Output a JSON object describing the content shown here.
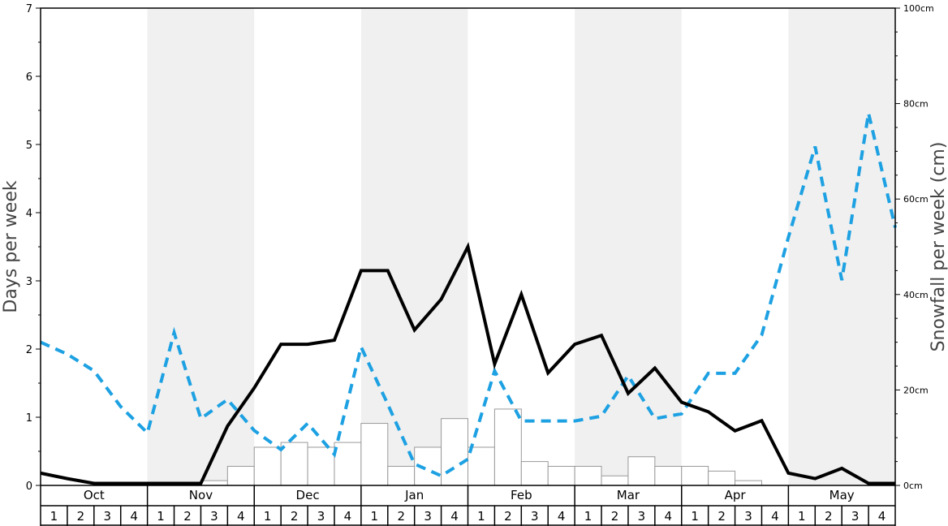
{
  "chart_data": {
    "type": "bar",
    "ylabel": "Days per week",
    "ylabel_right": "Snowfall per week (cm)",
    "ylim": [
      0,
      7
    ],
    "ylim_right": [
      0,
      100
    ],
    "yticks": [
      "0",
      "1",
      "2",
      "3",
      "4",
      "5",
      "6",
      "7"
    ],
    "yticks_right": [
      "0cm",
      "20cm",
      "40cm",
      "60cm",
      "80cm",
      "100cm"
    ],
    "months": [
      "Oct",
      "Nov",
      "Dec",
      "Jan",
      "Feb",
      "Mar",
      "Apr",
      "May"
    ],
    "weeks": [
      "1",
      "2",
      "3",
      "4"
    ],
    "grid": false,
    "shaded_months": [
      "Nov",
      "Jan",
      "Mar",
      "May"
    ],
    "colors": {
      "bars_fill": "#ffffff",
      "bars_stroke": "#999999",
      "solid_line": "#000000",
      "dashed_line": "#1da1e2",
      "shade": "#f0f0f0"
    },
    "series": [
      {
        "kind": "bars",
        "axis": "left",
        "values": [
          0,
          0,
          0,
          0,
          0,
          0,
          0.07,
          0.28,
          0.56,
          0.63,
          0.56,
          0.63,
          0.91,
          0.28,
          0.56,
          0.98,
          0.56,
          1.12,
          0.35,
          0.28,
          0.28,
          0.14,
          0.42,
          0.28,
          0.28,
          0.21,
          0.07,
          0,
          0,
          0,
          0,
          0
        ]
      },
      {
        "kind": "line",
        "style": "solid",
        "axis": "left",
        "values": [
          0.18,
          0.1,
          0.03,
          0.03,
          0.03,
          0.03,
          0.03,
          0.87,
          1.43,
          2.07,
          2.07,
          2.13,
          3.15,
          3.15,
          2.28,
          2.73,
          3.5,
          1.78,
          2.8,
          1.65,
          2.07,
          2.2,
          1.35,
          1.72,
          1.22,
          1.08,
          0.8,
          0.95,
          0.18,
          0.1,
          0.25,
          0.03,
          0.03
        ]
      },
      {
        "kind": "line",
        "style": "dashed",
        "axis": "right",
        "values": [
          30,
          27.5,
          24,
          16.5,
          11,
          32,
          14,
          18,
          11.5,
          7.5,
          13,
          6.5,
          29,
          17,
          4.5,
          2,
          5.5,
          24,
          13.5,
          13.5,
          13.5,
          14.5,
          23,
          14,
          15,
          23.5,
          23.5,
          31.5,
          52,
          71,
          43,
          78,
          54
        ]
      }
    ]
  }
}
